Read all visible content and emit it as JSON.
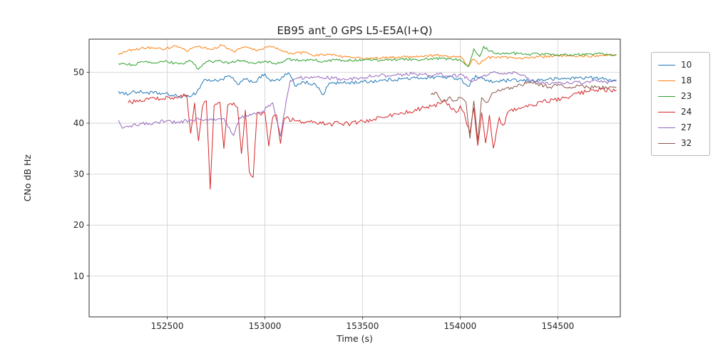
{
  "chart_data": {
    "type": "line",
    "title": "EB95 ant_0 GPS L5-E5A(I+Q)",
    "xlabel": "Time (s)",
    "ylabel": "CNo dB Hz",
    "xlim": [
      152100,
      154820
    ],
    "ylim": [
      2,
      56.5
    ],
    "xticks": [
      152500,
      153000,
      153500,
      154000,
      154500
    ],
    "yticks": [
      10,
      20,
      30,
      40,
      50
    ],
    "grid": true,
    "legend_position": "outside-right",
    "series": [
      {
        "name": "10",
        "color": "#1f77b4",
        "noise": 0.35,
        "points": [
          [
            152250,
            46.3
          ],
          [
            152280,
            45.6
          ],
          [
            152320,
            46.2
          ],
          [
            152400,
            46.0
          ],
          [
            152480,
            45.8
          ],
          [
            152550,
            45.3
          ],
          [
            152600,
            45.2
          ],
          [
            152650,
            46.0
          ],
          [
            152690,
            48.6
          ],
          [
            152730,
            48.3
          ],
          [
            152780,
            48.6
          ],
          [
            152820,
            49.3
          ],
          [
            152860,
            47.6
          ],
          [
            152900,
            48.6
          ],
          [
            152950,
            48.1
          ],
          [
            153000,
            49.7
          ],
          [
            153030,
            48.2
          ],
          [
            153080,
            48.6
          ],
          [
            153120,
            49.9
          ],
          [
            153160,
            47.2
          ],
          [
            153200,
            48.1
          ],
          [
            153260,
            47.6
          ],
          [
            153300,
            45.6
          ],
          [
            153330,
            47.9
          ],
          [
            153400,
            47.9
          ],
          [
            153500,
            48.1
          ],
          [
            153600,
            48.4
          ],
          [
            153700,
            48.7
          ],
          [
            153800,
            48.9
          ],
          [
            153900,
            49.1
          ],
          [
            154000,
            48.8
          ],
          [
            154040,
            47.2
          ],
          [
            154080,
            49.4
          ],
          [
            154150,
            48.1
          ],
          [
            154250,
            48.4
          ],
          [
            154350,
            48.3
          ],
          [
            154450,
            48.6
          ],
          [
            154550,
            48.8
          ],
          [
            154650,
            49.0
          ],
          [
            154750,
            48.6
          ],
          [
            154800,
            48.5
          ]
        ]
      },
      {
        "name": "18",
        "color": "#ff7f0e",
        "noise": 0.25,
        "points": [
          [
            152250,
            53.4
          ],
          [
            152300,
            54.3
          ],
          [
            152360,
            54.6
          ],
          [
            152420,
            54.9
          ],
          [
            152480,
            54.4
          ],
          [
            152540,
            55.2
          ],
          [
            152600,
            54.1
          ],
          [
            152660,
            55.1
          ],
          [
            152720,
            54.5
          ],
          [
            152780,
            55.3
          ],
          [
            152840,
            54.1
          ],
          [
            152900,
            55.0
          ],
          [
            152960,
            54.2
          ],
          [
            153020,
            55.1
          ],
          [
            153080,
            54.4
          ],
          [
            153140,
            53.6
          ],
          [
            153200,
            53.9
          ],
          [
            153260,
            53.3
          ],
          [
            153320,
            53.6
          ],
          [
            153380,
            53.1
          ],
          [
            153440,
            52.9
          ],
          [
            153500,
            52.7
          ],
          [
            153600,
            52.8
          ],
          [
            153700,
            53.0
          ],
          [
            153800,
            53.2
          ],
          [
            153900,
            53.3
          ],
          [
            153960,
            53.0
          ],
          [
            154000,
            53.2
          ],
          [
            154040,
            51.2
          ],
          [
            154070,
            52.6
          ],
          [
            154100,
            51.6
          ],
          [
            154140,
            52.9
          ],
          [
            154200,
            53.0
          ],
          [
            154300,
            52.8
          ],
          [
            154400,
            53.0
          ],
          [
            154500,
            53.2
          ],
          [
            154600,
            53.1
          ],
          [
            154700,
            53.3
          ],
          [
            154800,
            53.5
          ]
        ]
      },
      {
        "name": "23",
        "color": "#2ca02c",
        "noise": 0.25,
        "points": [
          [
            152250,
            51.7
          ],
          [
            152320,
            51.5
          ],
          [
            152380,
            52.0
          ],
          [
            152440,
            51.8
          ],
          [
            152500,
            52.1
          ],
          [
            152560,
            51.6
          ],
          [
            152620,
            52.2
          ],
          [
            152660,
            50.6
          ],
          [
            152700,
            52.1
          ],
          [
            152760,
            52.2
          ],
          [
            152820,
            51.9
          ],
          [
            152880,
            52.3
          ],
          [
            152940,
            51.8
          ],
          [
            153000,
            52.2
          ],
          [
            153060,
            51.6
          ],
          [
            153120,
            52.6
          ],
          [
            153180,
            52.3
          ],
          [
            153240,
            52.5
          ],
          [
            153300,
            52.1
          ],
          [
            153360,
            52.4
          ],
          [
            153420,
            52.3
          ],
          [
            153500,
            52.5
          ],
          [
            153600,
            52.4
          ],
          [
            153700,
            52.6
          ],
          [
            153800,
            52.5
          ],
          [
            153900,
            52.7
          ],
          [
            154000,
            52.5
          ],
          [
            154040,
            51.1
          ],
          [
            154070,
            54.6
          ],
          [
            154100,
            53.1
          ],
          [
            154120,
            55.1
          ],
          [
            154150,
            54.1
          ],
          [
            154200,
            53.6
          ],
          [
            154260,
            53.8
          ],
          [
            154320,
            53.5
          ],
          [
            154400,
            53.6
          ],
          [
            154500,
            53.4
          ],
          [
            154600,
            53.5
          ],
          [
            154700,
            53.6
          ],
          [
            154800,
            53.5
          ]
        ]
      },
      {
        "name": "24",
        "color": "#d62728",
        "noise": 0.45,
        "points": [
          [
            152300,
            44.0
          ],
          [
            152360,
            44.6
          ],
          [
            152420,
            45.0
          ],
          [
            152480,
            44.8
          ],
          [
            152540,
            45.2
          ],
          [
            152600,
            45.5
          ],
          [
            152620,
            38.0
          ],
          [
            152640,
            44.0
          ],
          [
            152660,
            36.5
          ],
          [
            152680,
            43.2
          ],
          [
            152700,
            44.4
          ],
          [
            152720,
            27.0
          ],
          [
            152740,
            43.4
          ],
          [
            152770,
            44.1
          ],
          [
            152790,
            35.0
          ],
          [
            152810,
            43.6
          ],
          [
            152840,
            44.0
          ],
          [
            152860,
            43.1
          ],
          [
            152880,
            34.0
          ],
          [
            152900,
            42.6
          ],
          [
            152920,
            30.5
          ],
          [
            152940,
            29.4
          ],
          [
            152960,
            42.1
          ],
          [
            152980,
            41.6
          ],
          [
            153000,
            42.1
          ],
          [
            153020,
            35.5
          ],
          [
            153040,
            41.2
          ],
          [
            153060,
            41.6
          ],
          [
            153080,
            36.0
          ],
          [
            153100,
            41.0
          ],
          [
            153150,
            40.6
          ],
          [
            153200,
            40.0
          ],
          [
            153260,
            40.2
          ],
          [
            153320,
            39.8
          ],
          [
            153380,
            40.0
          ],
          [
            153440,
            39.9
          ],
          [
            153500,
            40.4
          ],
          [
            153560,
            40.8
          ],
          [
            153620,
            41.3
          ],
          [
            153680,
            41.8
          ],
          [
            153740,
            42.3
          ],
          [
            153800,
            42.9
          ],
          [
            153860,
            43.4
          ],
          [
            153900,
            43.8
          ],
          [
            153920,
            44.4
          ],
          [
            153950,
            43.0
          ],
          [
            153980,
            42.1
          ],
          [
            154000,
            43.4
          ],
          [
            154020,
            42.1
          ],
          [
            154050,
            38.0
          ],
          [
            154070,
            43.0
          ],
          [
            154090,
            35.6
          ],
          [
            154110,
            42.1
          ],
          [
            154130,
            36.1
          ],
          [
            154150,
            41.6
          ],
          [
            154170,
            35.1
          ],
          [
            154200,
            41.1
          ],
          [
            154220,
            39.6
          ],
          [
            154250,
            42.4
          ],
          [
            154300,
            43.0
          ],
          [
            154360,
            43.6
          ],
          [
            154420,
            44.1
          ],
          [
            154480,
            44.6
          ],
          [
            154540,
            45.1
          ],
          [
            154600,
            45.9
          ],
          [
            154660,
            46.2
          ],
          [
            154720,
            46.6
          ],
          [
            154800,
            46.5
          ]
        ]
      },
      {
        "name": "27",
        "color": "#9467bd",
        "noise": 0.35,
        "points": [
          [
            152250,
            40.6
          ],
          [
            152270,
            39.0
          ],
          [
            152310,
            39.5
          ],
          [
            152370,
            39.9
          ],
          [
            152430,
            40.1
          ],
          [
            152490,
            40.4
          ],
          [
            152550,
            40.2
          ],
          [
            152610,
            40.5
          ],
          [
            152670,
            40.8
          ],
          [
            152730,
            40.6
          ],
          [
            152790,
            41.0
          ],
          [
            152840,
            37.6
          ],
          [
            152870,
            41.1
          ],
          [
            152930,
            41.6
          ],
          [
            152990,
            42.4
          ],
          [
            153040,
            44.0
          ],
          [
            153080,
            37.4
          ],
          [
            153110,
            44.6
          ],
          [
            153130,
            48.4
          ],
          [
            153170,
            49.0
          ],
          [
            153230,
            48.8
          ],
          [
            153290,
            49.0
          ],
          [
            153350,
            48.8
          ],
          [
            153410,
            48.6
          ],
          [
            153470,
            48.9
          ],
          [
            153530,
            49.1
          ],
          [
            153590,
            49.4
          ],
          [
            153650,
            49.3
          ],
          [
            153710,
            49.6
          ],
          [
            153770,
            49.7
          ],
          [
            153830,
            49.5
          ],
          [
            153890,
            49.6
          ],
          [
            153950,
            49.3
          ],
          [
            154010,
            49.5
          ],
          [
            154060,
            48.1
          ],
          [
            154110,
            49.1
          ],
          [
            154160,
            50.0
          ],
          [
            154220,
            49.6
          ],
          [
            154280,
            50.0
          ],
          [
            154340,
            48.9
          ],
          [
            154400,
            48.1
          ],
          [
            154460,
            47.6
          ],
          [
            154520,
            47.9
          ],
          [
            154580,
            48.1
          ],
          [
            154640,
            48.0
          ],
          [
            154700,
            48.3
          ],
          [
            154760,
            48.1
          ],
          [
            154800,
            48.2
          ]
        ]
      },
      {
        "name": "32",
        "color": "#8c564b",
        "noise": 0.35,
        "points": [
          [
            153850,
            45.6
          ],
          [
            153880,
            46.0
          ],
          [
            153910,
            44.1
          ],
          [
            153940,
            45.0
          ],
          [
            153970,
            44.4
          ],
          [
            154000,
            45.0
          ],
          [
            154030,
            44.1
          ],
          [
            154050,
            37.0
          ],
          [
            154070,
            44.4
          ],
          [
            154090,
            36.6
          ],
          [
            154110,
            45.0
          ],
          [
            154140,
            44.1
          ],
          [
            154170,
            46.0
          ],
          [
            154210,
            46.4
          ],
          [
            154260,
            47.0
          ],
          [
            154310,
            47.5
          ],
          [
            154360,
            48.0
          ],
          [
            154410,
            47.6
          ],
          [
            154460,
            47.1
          ],
          [
            154510,
            47.5
          ],
          [
            154560,
            47.1
          ],
          [
            154610,
            47.3
          ],
          [
            154660,
            47.0
          ],
          [
            154710,
            47.2
          ],
          [
            154760,
            46.9
          ],
          [
            154800,
            47.0
          ]
        ]
      }
    ]
  }
}
